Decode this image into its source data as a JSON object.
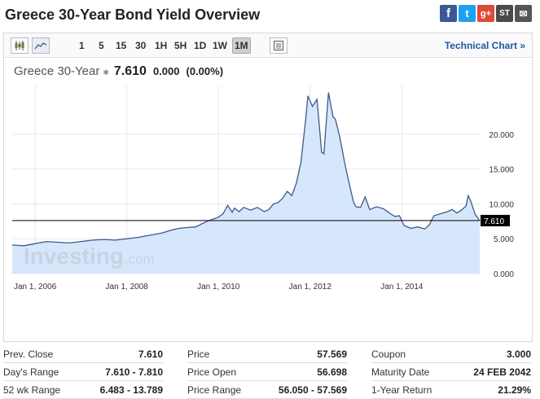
{
  "header": {
    "title": "Greece 30-Year Bond Yield Overview",
    "social": [
      {
        "icon": "facebook-icon",
        "glyph": "f"
      },
      {
        "icon": "twitter-icon",
        "glyph": "t"
      },
      {
        "icon": "google-plus-icon",
        "glyph": "g+"
      },
      {
        "icon": "stocktwits-icon",
        "glyph": "ST"
      },
      {
        "icon": "email-icon",
        "glyph": "✉"
      }
    ]
  },
  "toolbar": {
    "icons": [
      "candlestick-icon",
      "area-chart-icon"
    ],
    "periods": [
      "1",
      "5",
      "15",
      "30",
      "1H",
      "5H",
      "1D",
      "1W",
      "1M"
    ],
    "active_period": "1M",
    "settings_icon": "chart-settings-icon",
    "technical_link": "Technical Chart »"
  },
  "quote": {
    "symbol": "Greece 30-Year",
    "last": "7.610",
    "change": "0.000",
    "change_pct": "(0.00%)"
  },
  "chart_data": {
    "type": "area",
    "watermark": "Investing.com",
    "x_ticks": [
      "Jan 1, 2006",
      "Jan 1, 2008",
      "Jan 1, 2010",
      "Jan 1, 2012",
      "Jan 1, 2014"
    ],
    "y_ticks": [
      "0.000",
      "5.000",
      "10.000",
      "15.000",
      "20.000"
    ],
    "ylim": [
      0,
      27
    ],
    "xlim": [
      2005.5,
      2015.7
    ],
    "current_label": "7.610",
    "current_value": 7.61,
    "colors": {
      "line": "#3d5a8a",
      "fill": "#d6e6fb",
      "grid": "#e8e8e8",
      "current": "#000000"
    },
    "series": [
      {
        "x": [
          2005.5,
          2005.75,
          2006.0,
          2006.25,
          2006.5,
          2006.75,
          2007.0,
          2007.25,
          2007.5,
          2007.75,
          2008.0,
          2008.25,
          2008.5,
          2008.75,
          2009.0,
          2009.15,
          2009.3,
          2009.5,
          2009.75,
          2010.0,
          2010.1,
          2010.2,
          2010.3,
          2010.35,
          2010.45,
          2010.55,
          2010.7,
          2010.85,
          2011.0,
          2011.1,
          2011.2,
          2011.3,
          2011.4,
          2011.5,
          2011.6,
          2011.7,
          2011.8,
          2011.9,
          2011.95,
          2012.05,
          2012.15,
          2012.25,
          2012.3,
          2012.4,
          2012.5,
          2012.55,
          2012.65,
          2012.75,
          2012.85,
          2012.95,
          2013.0,
          2013.1,
          2013.2,
          2013.3,
          2013.45,
          2013.6,
          2013.75,
          2013.85,
          2013.95,
          2014.05,
          2014.2,
          2014.35,
          2014.5,
          2014.6,
          2014.7,
          2014.85,
          2015.0,
          2015.1,
          2015.2,
          2015.3,
          2015.4,
          2015.45,
          2015.5,
          2015.6,
          2015.7
        ],
        "values": [
          4.1,
          4.0,
          4.3,
          4.6,
          4.5,
          4.4,
          4.6,
          4.8,
          4.9,
          4.8,
          5.0,
          5.2,
          5.5,
          5.8,
          6.3,
          6.5,
          6.6,
          6.7,
          7.5,
          8.1,
          8.6,
          9.8,
          8.8,
          9.4,
          8.9,
          9.5,
          9.1,
          9.5,
          8.9,
          9.2,
          10.0,
          10.2,
          10.8,
          11.8,
          11.2,
          13.0,
          16.0,
          22.0,
          25.5,
          24.0,
          25.0,
          17.4,
          17.2,
          26.0,
          22.5,
          22.2,
          19.5,
          16.0,
          13.0,
          10.2,
          9.6,
          9.5,
          11.0,
          9.2,
          9.6,
          9.3,
          8.6,
          8.2,
          8.3,
          6.9,
          6.5,
          6.7,
          6.4,
          7.0,
          8.3,
          8.6,
          8.9,
          9.2,
          8.7,
          9.1,
          9.7,
          11.2,
          10.5,
          8.5,
          7.61
        ]
      }
    ]
  },
  "stats": [
    [
      {
        "label": "Prev. Close",
        "value": "7.610"
      },
      {
        "label": "Day's Range",
        "value": "7.610 - 7.810"
      },
      {
        "label": "52 wk Range",
        "value": "6.483 - 13.789"
      }
    ],
    [
      {
        "label": "Price",
        "value": "57.569"
      },
      {
        "label": "Price Open",
        "value": "56.698"
      },
      {
        "label": "Price Range",
        "value": "56.050 - 57.569"
      }
    ],
    [
      {
        "label": "Coupon",
        "value": "3.000"
      },
      {
        "label": "Maturity Date",
        "value": "24 FEB 2042"
      },
      {
        "label": "1-Year Return",
        "value": "21.29%"
      }
    ]
  ]
}
